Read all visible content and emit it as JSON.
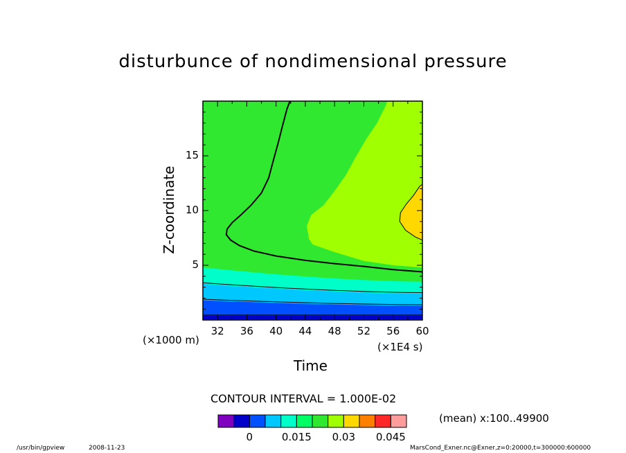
{
  "chart_data": {
    "type": "contour",
    "title": "disturbunce of nondimensional pressure",
    "xlabel": "Time",
    "ylabel": "Z-coordinate",
    "x_unit": "(×1E4 s)",
    "y_unit": "(×1000 m)",
    "xlim": [
      30,
      60
    ],
    "ylim": [
      0,
      20
    ],
    "xticks": [
      "32",
      "36",
      "40",
      "44",
      "48",
      "52",
      "56",
      "60"
    ],
    "yticks": [
      "5",
      "10",
      "15"
    ],
    "contour_interval": "CONTOUR INTERVAL = 1.000E-02",
    "mean_note": "(mean) x:100..49900",
    "colorbar": {
      "colors": [
        "#7f00bf",
        "#0000c8",
        "#0050ff",
        "#00c8ff",
        "#00ffc8",
        "#00ff64",
        "#30e830",
        "#a0ff00",
        "#ffd800",
        "#ff8000",
        "#ff2828",
        "#ff9c9c"
      ],
      "tick_labels": [
        "0",
        "0.015",
        "0.03",
        "0.045"
      ]
    },
    "regions": [
      {
        "level": "-0.010..-0.005",
        "color": "#0000c8",
        "y_top": 0.4
      },
      {
        "level": "-0.005..0",
        "color": "#0050ff",
        "y_top_start": 1.8,
        "y_top_end": 1.3
      },
      {
        "level": "0..0.005",
        "color": "#00c8ff",
        "y_top_start": 3.3,
        "y_top_end": 2.4
      },
      {
        "level": "0.005..0.010",
        "color": "#00ffc8",
        "y_top_start": 4.8,
        "y_top_end": 3.5
      },
      {
        "level": "0.010..0.020",
        "color": "#30e830"
      },
      {
        "level": "0.020..0.030",
        "color": "#a0ff00"
      },
      {
        "level": "0.030..0.035",
        "color": "#ffd800"
      }
    ]
  },
  "footer": {
    "program": "/usr/bin/gpview",
    "date": "2008-11-23",
    "file": "MarsCond_Exner.nc@Exner,z=0:20000,t=300000:600000"
  }
}
